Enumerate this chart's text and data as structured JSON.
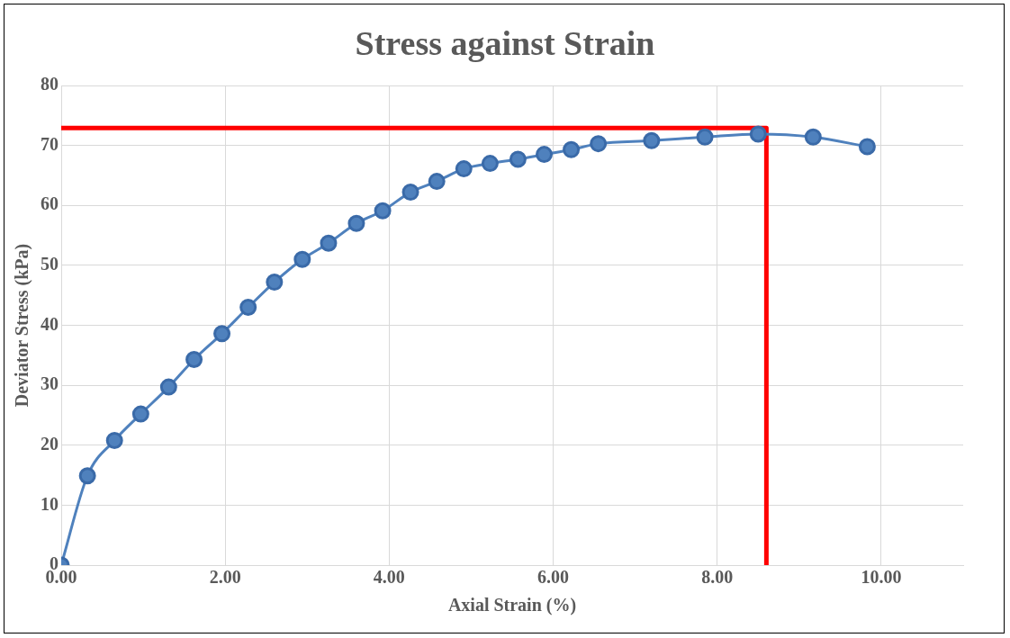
{
  "chart_data": {
    "type": "line",
    "title": "Stress against Strain",
    "xlabel": "Axial Strain (%)",
    "ylabel": "Deviator Stress (kPa)",
    "xlim": [
      0,
      11
    ],
    "xticks": [
      {
        "value": 0,
        "label": "0.00"
      },
      {
        "value": 2,
        "label": "2.00"
      },
      {
        "value": 4,
        "label": "4.00"
      },
      {
        "value": 6,
        "label": "6.00"
      },
      {
        "value": 8,
        "label": "8.00"
      },
      {
        "value": 10,
        "label": "10.00"
      }
    ],
    "ylim": [
      0,
      80
    ],
    "yticks": [
      0,
      10,
      20,
      30,
      40,
      50,
      60,
      70,
      80
    ],
    "grid": true,
    "legend": false,
    "marker": "circle",
    "series": [
      {
        "color": "#4f81bd",
        "x": [
          0,
          0.32,
          0.65,
          0.97,
          1.31,
          1.62,
          1.96,
          2.28,
          2.6,
          2.94,
          3.26,
          3.6,
          3.92,
          4.26,
          4.58,
          4.91,
          5.23,
          5.57,
          5.89,
          6.22,
          6.55,
          7.2,
          7.85,
          8.5,
          9.17,
          9.83
        ],
        "values": [
          0,
          14.9,
          20.8,
          25.2,
          29.7,
          34.3,
          38.6,
          43,
          47.2,
          51,
          53.7,
          57,
          59.1,
          62.2,
          64,
          66.1,
          67,
          67.7,
          68.5,
          69.3,
          70.3,
          70.8,
          71.4,
          71.9,
          71.4,
          69.8
        ]
      },
      {
        "color": "#ff0000",
        "marker": "none",
        "x": [
          0,
          8.6,
          8.6
        ],
        "values": [
          72.9,
          72.9,
          0
        ]
      }
    ]
  }
}
